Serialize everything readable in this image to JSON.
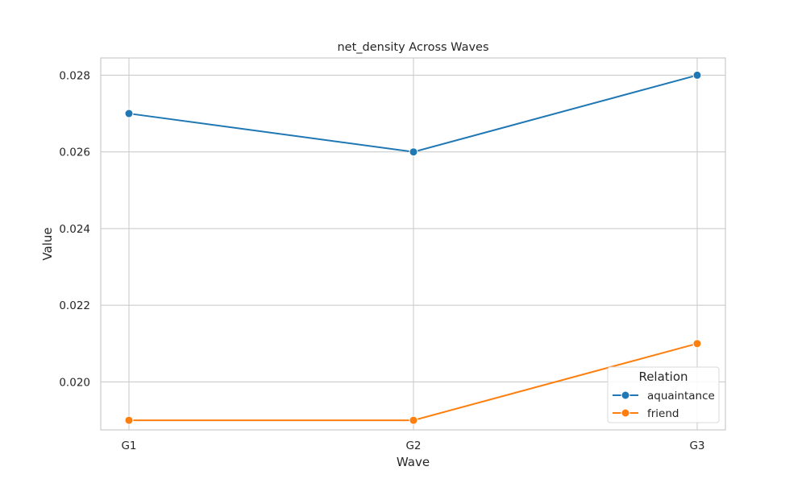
{
  "chart_data": {
    "type": "line",
    "title": "net_density Across Waves",
    "xlabel": "Wave",
    "ylabel": "Value",
    "categories": [
      "G1",
      "G2",
      "G3"
    ],
    "ylim": [
      0.01875,
      0.02845
    ],
    "yticks": [
      0.02,
      0.022,
      0.024,
      0.026,
      0.028
    ],
    "ytick_labels": [
      "0.020",
      "0.022",
      "0.024",
      "0.026",
      "0.028"
    ],
    "grid": true,
    "legend": {
      "title": "Relation",
      "placement": "lower-right"
    },
    "series": [
      {
        "name": "aquaintance",
        "color": "#1f77b4",
        "values": [
          0.027,
          0.026,
          0.028
        ]
      },
      {
        "name": "friend",
        "color": "#ff7f0e",
        "values": [
          0.019,
          0.019,
          0.021
        ]
      }
    ]
  }
}
